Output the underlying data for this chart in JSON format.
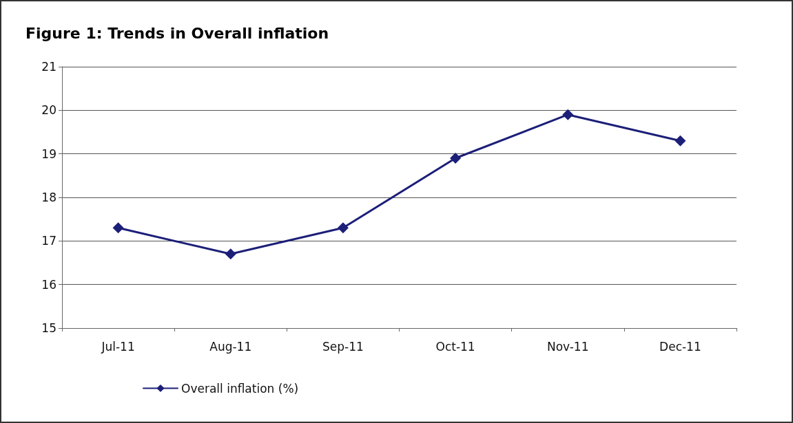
{
  "chart_data": {
    "type": "line",
    "title": "Figure 1: Trends in Overall inflation",
    "categories": [
      "Jul-11",
      "Aug-11",
      "Sep-11",
      "Oct-11",
      "Nov-11",
      "Dec-11"
    ],
    "series": [
      {
        "name": "Overall inflation (%)",
        "color": "#1c1f78",
        "values": [
          17.3,
          16.7,
          17.3,
          18.9,
          19.9,
          19.3
        ]
      }
    ],
    "ylim": [
      15,
      21
    ],
    "yticks": [
      15,
      16,
      17,
      18,
      19,
      20,
      21
    ],
    "grid": "y",
    "legend": "bottom",
    "marker": "diamond",
    "line_style": "solid"
  }
}
